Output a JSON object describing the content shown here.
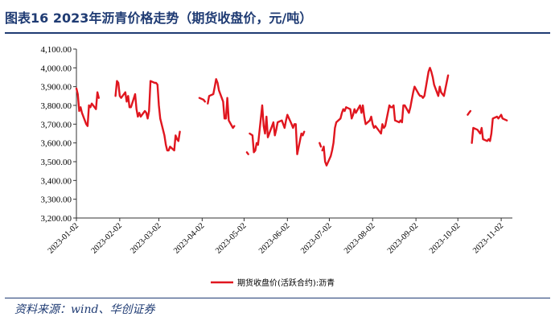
{
  "figure": {
    "title": "图表16  2023年沥青价格走势（期货收盘价，元/吨）",
    "source": "资料来源：wind、华创证券"
  },
  "chart_data": {
    "type": "line",
    "title": "",
    "xlabel": "",
    "ylabel": "",
    "ylim": [
      3200,
      4100
    ],
    "ytick_step": 100,
    "yticks": [
      "3,200.00",
      "3,300.00",
      "3,400.00",
      "3,500.00",
      "3,600.00",
      "3,700.00",
      "3,800.00",
      "3,900.00",
      "4,000.00",
      "4,100.00"
    ],
    "x_start": "2023-01-02",
    "x_end": "2023-11-10",
    "xticks": [
      "2023-01-02",
      "2023-02-02",
      "2023-03-02",
      "2023-04-02",
      "2023-05-02",
      "2023-06-02",
      "2023-07-02",
      "2023-08-02",
      "2023-09-02",
      "2023-10-02",
      "2023-11-02"
    ],
    "grid": false,
    "legend_position": "bottom",
    "series": [
      {
        "name": "期货收盘价(活跃合约):沥青",
        "color": "#e0161f",
        "segments": [
          [
            [
              "2023-01-02",
              3890
            ],
            [
              "2023-01-03",
              3860
            ],
            [
              "2023-01-04",
              3770
            ],
            [
              "2023-01-05",
              3790
            ],
            [
              "2023-01-06",
              3760
            ],
            [
              "2023-01-09",
              3700
            ],
            [
              "2023-01-10",
              3690
            ],
            [
              "2023-01-11",
              3800
            ],
            [
              "2023-01-12",
              3790
            ],
            [
              "2023-01-13",
              3810
            ],
            [
              "2023-01-16",
              3780
            ],
            [
              "2023-01-17",
              3870
            ],
            [
              "2023-01-18",
              3840
            ]
          ],
          [
            [
              "2023-01-30",
              3850
            ],
            [
              "2023-01-31",
              3930
            ],
            [
              "2023-02-01",
              3920
            ],
            [
              "2023-02-02",
              3850
            ],
            [
              "2023-02-03",
              3840
            ],
            [
              "2023-02-06",
              3870
            ],
            [
              "2023-02-07",
              3820
            ],
            [
              "2023-02-08",
              3850
            ],
            [
              "2023-02-09",
              3790
            ],
            [
              "2023-02-10",
              3790
            ],
            [
              "2023-02-13",
              3860
            ],
            [
              "2023-02-14",
              3780
            ],
            [
              "2023-02-15",
              3740
            ],
            [
              "2023-02-16",
              3760
            ],
            [
              "2023-02-17",
              3740
            ],
            [
              "2023-02-20",
              3770
            ],
            [
              "2023-02-21",
              3760
            ],
            [
              "2023-02-22",
              3730
            ],
            [
              "2023-02-23",
              3770
            ],
            [
              "2023-02-24",
              3930
            ],
            [
              "2023-02-27",
              3920
            ],
            [
              "2023-02-28",
              3920
            ],
            [
              "2023-03-01",
              3910
            ],
            [
              "2023-03-02",
              3800
            ],
            [
              "2023-03-03",
              3730
            ],
            [
              "2023-03-06",
              3640
            ],
            [
              "2023-03-07",
              3590
            ],
            [
              "2023-03-08",
              3560
            ],
            [
              "2023-03-09",
              3560
            ],
            [
              "2023-03-10",
              3580
            ],
            [
              "2023-03-13",
              3560
            ],
            [
              "2023-03-14",
              3640
            ],
            [
              "2023-03-15",
              3620
            ],
            [
              "2023-03-16",
              3610
            ],
            [
              "2023-03-17",
              3660
            ]
          ],
          [
            [
              "2023-03-31",
              3840
            ],
            [
              "2023-04-03",
              3830
            ],
            [
              "2023-04-04",
              3820
            ]
          ],
          [
            [
              "2023-04-06",
              3810
            ],
            [
              "2023-04-07",
              3850
            ],
            [
              "2023-04-10",
              3860
            ],
            [
              "2023-04-11",
              3900
            ],
            [
              "2023-04-12",
              3940
            ],
            [
              "2023-04-13",
              3920
            ],
            [
              "2023-04-14",
              3880
            ],
            [
              "2023-04-17",
              3820
            ],
            [
              "2023-04-18",
              3730
            ],
            [
              "2023-04-19",
              3730
            ],
            [
              "2023-04-20",
              3840
            ],
            [
              "2023-04-21",
              3720
            ],
            [
              "2023-04-24",
              3680
            ],
            [
              "2023-04-25",
              3690
            ]
          ],
          [
            [
              "2023-05-04",
              3550
            ],
            [
              "2023-05-05",
              3540
            ]
          ],
          [
            [
              "2023-05-06",
              3650
            ],
            [
              "2023-05-08",
              3640
            ],
            [
              "2023-05-09",
              3550
            ],
            [
              "2023-05-10",
              3560
            ],
            [
              "2023-05-11",
              3600
            ],
            [
              "2023-05-12",
              3590
            ],
            [
              "2023-05-15",
              3800
            ],
            [
              "2023-05-16",
              3690
            ],
            [
              "2023-05-17",
              3650
            ],
            [
              "2023-05-18",
              3740
            ],
            [
              "2023-05-19",
              3630
            ],
            [
              "2023-05-22",
              3690
            ],
            [
              "2023-05-23",
              3710
            ],
            [
              "2023-05-24",
              3640
            ],
            [
              "2023-05-25",
              3670
            ],
            [
              "2023-05-26",
              3710
            ],
            [
              "2023-05-29",
              3720
            ],
            [
              "2023-05-30",
              3700
            ],
            [
              "2023-05-31",
              3680
            ],
            [
              "2023-06-01",
              3720
            ],
            [
              "2023-06-02",
              3750
            ],
            [
              "2023-06-05",
              3700
            ],
            [
              "2023-06-06",
              3680
            ],
            [
              "2023-06-07",
              3700
            ],
            [
              "2023-06-08",
              3700
            ],
            [
              "2023-06-09",
              3540
            ],
            [
              "2023-06-12",
              3650
            ],
            [
              "2023-06-13",
              3640
            ],
            [
              "2023-06-14",
              3660
            ]
          ],
          [
            [
              "2023-06-25",
              3600
            ],
            [
              "2023-06-26",
              3580
            ]
          ],
          [
            [
              "2023-06-27",
              3560
            ],
            [
              "2023-06-28",
              3580
            ],
            [
              "2023-06-29",
              3500
            ],
            [
              "2023-06-30",
              3480
            ],
            [
              "2023-07-03",
              3530
            ],
            [
              "2023-07-04",
              3560
            ],
            [
              "2023-07-05",
              3600
            ],
            [
              "2023-07-06",
              3680
            ],
            [
              "2023-07-07",
              3710
            ],
            [
              "2023-07-10",
              3730
            ],
            [
              "2023-07-11",
              3760
            ],
            [
              "2023-07-12",
              3780
            ],
            [
              "2023-07-13",
              3770
            ],
            [
              "2023-07-14",
              3790
            ],
            [
              "2023-07-17",
              3780
            ],
            [
              "2023-07-18",
              3730
            ],
            [
              "2023-07-19",
              3750
            ],
            [
              "2023-07-20",
              3780
            ],
            [
              "2023-07-21",
              3760
            ],
            [
              "2023-07-24",
              3800
            ],
            [
              "2023-07-25",
              3760
            ],
            [
              "2023-07-26",
              3800
            ],
            [
              "2023-07-27",
              3740
            ],
            [
              "2023-07-28",
              3700
            ],
            [
              "2023-07-31",
              3720
            ],
            [
              "2023-08-01",
              3740
            ],
            [
              "2023-08-02",
              3700
            ],
            [
              "2023-08-03",
              3680
            ],
            [
              "2023-08-04",
              3690
            ],
            [
              "2023-08-07",
              3660
            ],
            [
              "2023-08-08",
              3650
            ],
            [
              "2023-08-09",
              3700
            ],
            [
              "2023-08-10",
              3680
            ],
            [
              "2023-08-11",
              3690
            ],
            [
              "2023-08-14",
              3800
            ],
            [
              "2023-08-15",
              3790
            ],
            [
              "2023-08-16",
              3790
            ],
            [
              "2023-08-17",
              3800
            ],
            [
              "2023-08-18",
              3720
            ],
            [
              "2023-08-21",
              3710
            ],
            [
              "2023-08-22",
              3720
            ],
            [
              "2023-08-23",
              3710
            ],
            [
              "2023-08-24",
              3800
            ],
            [
              "2023-08-25",
              3800
            ],
            [
              "2023-08-28",
              3760
            ],
            [
              "2023-08-29",
              3790
            ],
            [
              "2023-08-30",
              3830
            ],
            [
              "2023-08-31",
              3870
            ],
            [
              "2023-09-01",
              3900
            ],
            [
              "2023-09-04",
              3860
            ],
            [
              "2023-09-05",
              3850
            ],
            [
              "2023-09-06",
              3850
            ],
            [
              "2023-09-07",
              3840
            ],
            [
              "2023-09-08",
              3850
            ],
            [
              "2023-09-11",
              3980
            ],
            [
              "2023-09-12",
              4000
            ],
            [
              "2023-09-13",
              3980
            ],
            [
              "2023-09-14",
              3950
            ],
            [
              "2023-09-15",
              3910
            ],
            [
              "2023-09-18",
              3850
            ],
            [
              "2023-09-19",
              3900
            ],
            [
              "2023-09-20",
              3870
            ],
            [
              "2023-09-21",
              3860
            ],
            [
              "2023-09-22",
              3850
            ],
            [
              "2023-09-25",
              3960
            ]
          ],
          [
            [
              "2023-10-09",
              3750
            ],
            [
              "2023-10-10",
              3760
            ],
            [
              "2023-10-11",
              3770
            ]
          ],
          [
            [
              "2023-10-12",
              3600
            ],
            [
              "2023-10-13",
              3680
            ],
            [
              "2023-10-16",
              3670
            ],
            [
              "2023-10-17",
              3660
            ],
            [
              "2023-10-18",
              3650
            ],
            [
              "2023-10-19",
              3680
            ],
            [
              "2023-10-20",
              3620
            ],
            [
              "2023-10-23",
              3610
            ],
            [
              "2023-10-24",
              3620
            ],
            [
              "2023-10-25",
              3610
            ],
            [
              "2023-10-26",
              3650
            ],
            [
              "2023-10-27",
              3730
            ],
            [
              "2023-10-30",
              3740
            ],
            [
              "2023-10-31",
              3730
            ],
            [
              "2023-11-01",
              3740
            ],
            [
              "2023-11-02",
              3750
            ],
            [
              "2023-11-03",
              3730
            ],
            [
              "2023-11-06",
              3720
            ]
          ]
        ]
      }
    ]
  }
}
